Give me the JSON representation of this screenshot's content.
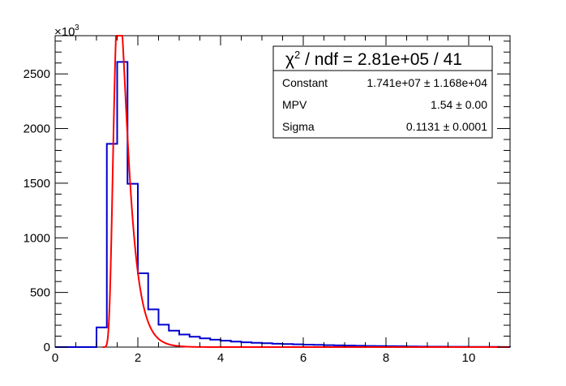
{
  "chart_data": {
    "type": "histogram",
    "xlim": [
      0,
      11
    ],
    "ylim": [
      0,
      2850
    ],
    "x_ticks": [
      0,
      2,
      4,
      6,
      8,
      10
    ],
    "y_ticks": [
      0,
      500,
      1000,
      1500,
      2000,
      2500
    ],
    "y_multiplier": "×10",
    "y_multiplier_exp": "3",
    "grid": false,
    "histogram": {
      "color": "#0000cc",
      "bin_width": 0.25,
      "bin_start": 0.5,
      "values": [
        0,
        0,
        180,
        1860,
        2610,
        1495,
        675,
        345,
        205,
        150,
        115,
        95,
        80,
        68,
        58,
        50,
        44,
        39,
        35,
        31,
        28,
        25,
        22,
        20,
        18,
        16,
        14,
        12,
        10,
        9,
        8,
        7,
        6,
        5,
        4,
        4,
        3,
        3,
        2,
        2,
        2,
        1
      ]
    },
    "fit": {
      "color": "#ff0000",
      "function": "landau",
      "x_start": 1.15,
      "x_end": 11.0,
      "constant": 17410000,
      "mpv": 1.54,
      "sigma": 0.1131,
      "scale": 0.001
    },
    "stats_box": {
      "title_chi": "χ",
      "title_sup": "2",
      "title_rest": " / ndf = 2.81e+05 / 41",
      "rows": [
        {
          "name": "Constant",
          "value": "1.741e+07 ± 1.168e+04"
        },
        {
          "name": "MPV",
          "value": "1.54 ± 0.00"
        },
        {
          "name": "Sigma",
          "value": "0.1131 ± 0.0001"
        }
      ]
    }
  }
}
